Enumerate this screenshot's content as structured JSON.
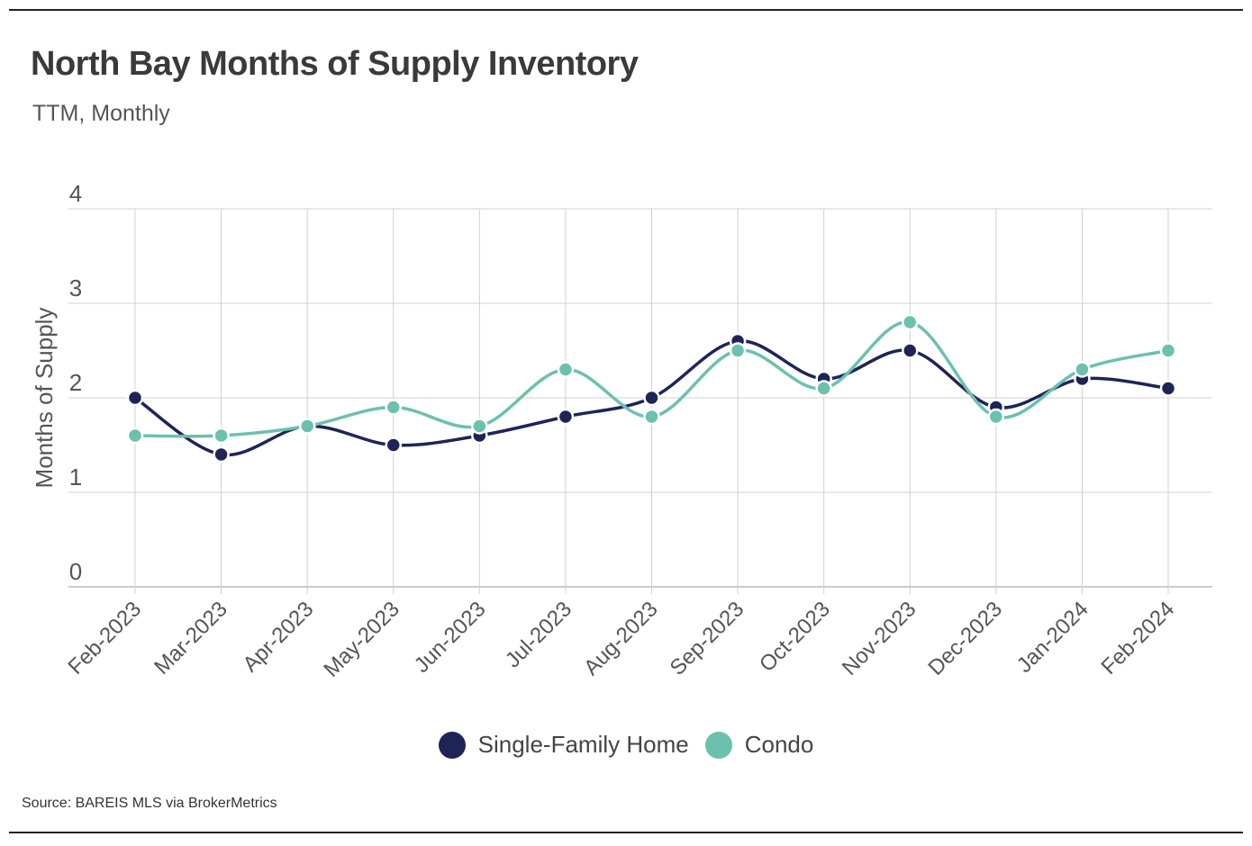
{
  "header": {
    "title": "North Bay Months of Supply Inventory",
    "subtitle": "TTM, Monthly"
  },
  "footer": {
    "source": "Source:  BAREIS MLS via BrokerMetrics"
  },
  "chart_data": {
    "type": "line",
    "title": "North Bay Months of Supply Inventory",
    "subtitle": "TTM, Monthly",
    "xlabel": "",
    "ylabel": "Months of Supply",
    "ylim": [
      0,
      4
    ],
    "yticks": [
      "0",
      "1",
      "2",
      "3",
      "4"
    ],
    "grid": true,
    "legend_position": "bottom-center",
    "categories": [
      "Feb-2023",
      "Mar-2023",
      "Apr-2023",
      "May-2023",
      "Jun-2023",
      "Jul-2023",
      "Aug-2023",
      "Sep-2023",
      "Oct-2023",
      "Nov-2023",
      "Dec-2023",
      "Jan-2024",
      "Feb-2024"
    ],
    "series": [
      {
        "name": "Single-Family Home",
        "color": "#1f2456",
        "values": [
          2.0,
          1.4,
          1.7,
          1.5,
          1.6,
          1.8,
          2.0,
          2.6,
          2.2,
          2.5,
          1.9,
          2.2,
          2.1
        ]
      },
      {
        "name": "Condo",
        "color": "#6cc0ae",
        "values": [
          1.6,
          1.6,
          1.7,
          1.9,
          1.7,
          2.3,
          1.8,
          2.5,
          2.1,
          2.8,
          1.8,
          2.3,
          2.5
        ]
      }
    ]
  }
}
